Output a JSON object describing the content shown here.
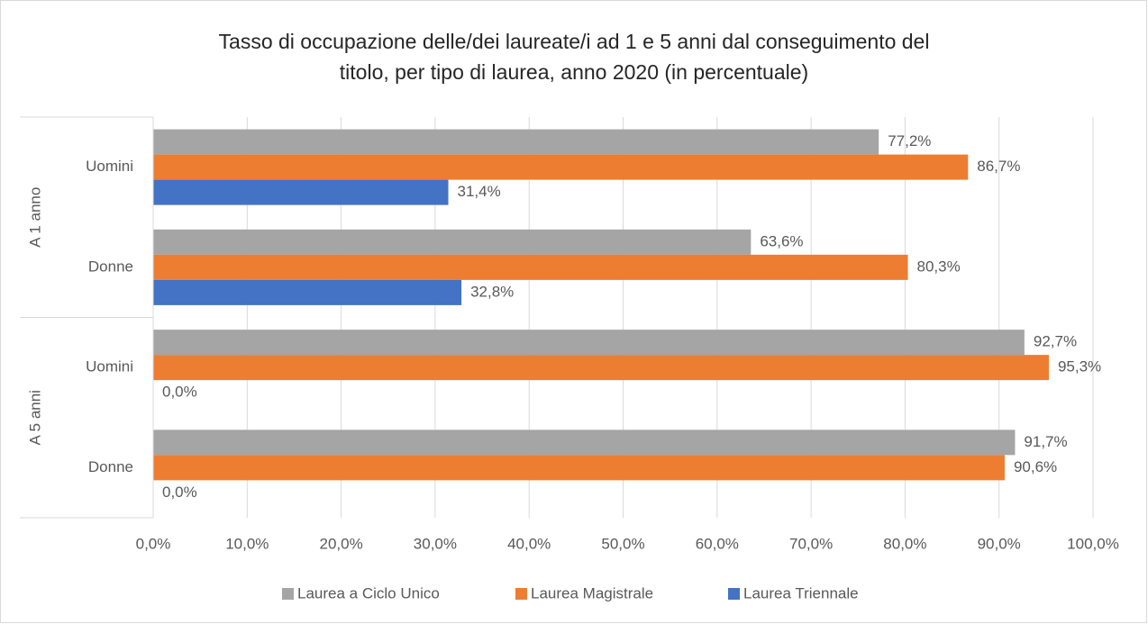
{
  "chart_data": {
    "type": "hbar",
    "title": [
      "Tasso di occupazione delle/dei laureate/i ad 1 e 5 anni dal conseguimento del",
      "titolo, per tipo di laurea, anno 2020 (in percentuale)"
    ],
    "category_groups": [
      "A 1 anno",
      "A 5 anni"
    ],
    "categories": [
      "Uomini",
      "Donne",
      "Uomini",
      "Donne"
    ],
    "series": [
      {
        "name": "Laurea a Ciclo Unico",
        "color": "#a5a5a5",
        "values": [
          77.2,
          63.6,
          92.7,
          91.7
        ],
        "value_labels": [
          "77,2%",
          "63,6%",
          "92,7%",
          "91,7%"
        ]
      },
      {
        "name": "Laurea Magistrale",
        "color": "#ed7d31",
        "values": [
          86.7,
          80.3,
          95.3,
          90.6
        ],
        "value_labels": [
          "86,7%",
          "80,3%",
          "95,3%",
          "90,6%"
        ]
      },
      {
        "name": "Laurea Triennale",
        "color": "#4472c4",
        "values": [
          31.4,
          32.8,
          0,
          0
        ],
        "value_labels": [
          "31,4%",
          "32,8%",
          "0,0%",
          "0,0%"
        ]
      }
    ],
    "xlim": [
      0,
      100
    ],
    "xticks": [
      {
        "value": 0,
        "label": "0,0%"
      },
      {
        "value": 10,
        "label": "10,0%"
      },
      {
        "value": 20,
        "label": "20,0%"
      },
      {
        "value": 30,
        "label": "30,0%"
      },
      {
        "value": 40,
        "label": "40,0%"
      },
      {
        "value": 50,
        "label": "50,0%"
      },
      {
        "value": 60,
        "label": "60,0%"
      },
      {
        "value": 70,
        "label": "70,0%"
      },
      {
        "value": 80,
        "label": "80,0%"
      },
      {
        "value": 90,
        "label": "90,0%"
      },
      {
        "value": 100,
        "label": "100,0%"
      }
    ],
    "grid": true,
    "legend": "bottom"
  }
}
